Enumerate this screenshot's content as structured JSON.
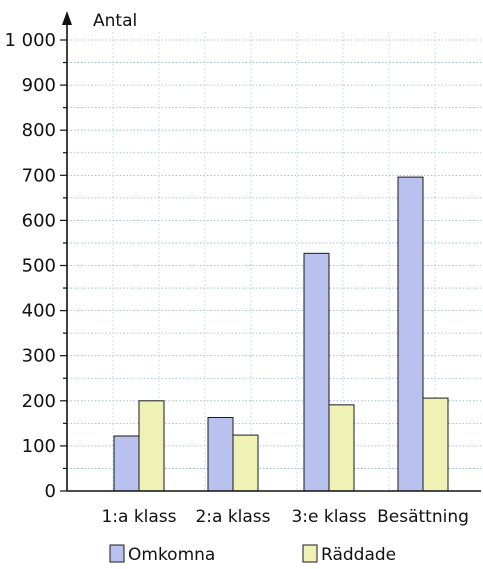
{
  "chart_data": {
    "type": "bar",
    "ylabel": "Antal",
    "ylim": [
      0,
      1000
    ],
    "yticks": [
      0,
      100,
      200,
      300,
      400,
      500,
      600,
      700,
      800,
      900,
      1000
    ],
    "ytick_labels": [
      "0",
      "100",
      "200",
      "300",
      "400",
      "500",
      "600",
      "700",
      "800",
      "900",
      "1 000"
    ],
    "categories": [
      "1:a klass",
      "2:a klass",
      "3:e klass",
      "Besättning"
    ],
    "series": [
      {
        "name": "Omkomna",
        "values": [
          122,
          163,
          527,
          696
        ],
        "color": "#b9c1ee"
      },
      {
        "name": "Räddade",
        "values": [
          200,
          124,
          191,
          206
        ],
        "color": "#f0f1b4"
      }
    ],
    "grid": true,
    "legend_position": "bottom"
  }
}
